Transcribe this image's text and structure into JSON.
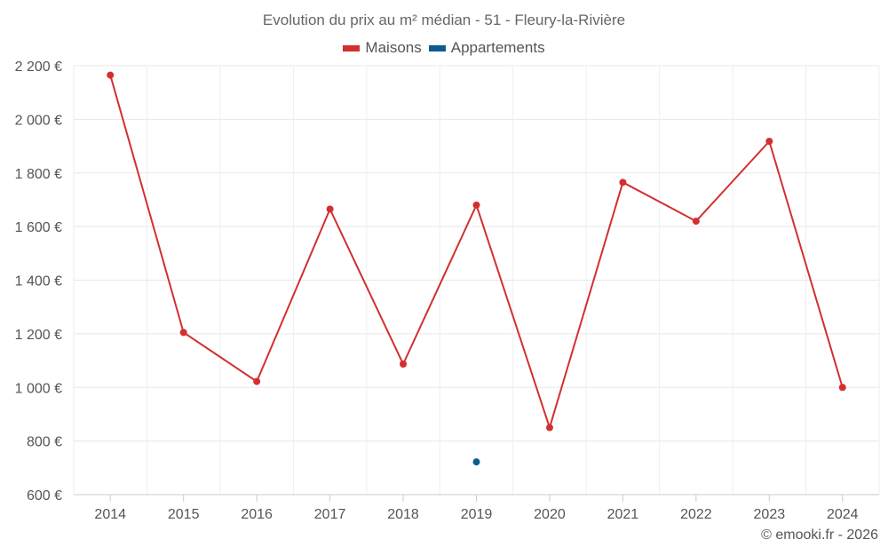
{
  "title": "Evolution du prix au m² médian - 51 - Fleury-la-Rivière",
  "credit": "© emooki.fr - 2026",
  "chart_data": {
    "type": "line",
    "title": "Evolution du prix au m² médian - 51 - Fleury-la-Rivière",
    "xlabel": "",
    "ylabel": "",
    "categories": [
      "2014",
      "2015",
      "2016",
      "2017",
      "2018",
      "2019",
      "2020",
      "2021",
      "2022",
      "2023",
      "2024"
    ],
    "ylim": [
      600,
      2200
    ],
    "yticks": [
      600,
      800,
      1000,
      1200,
      1400,
      1600,
      1800,
      2000,
      2200
    ],
    "ytick_labels": [
      "600 €",
      "800 €",
      "1 000 €",
      "1 200 €",
      "1 400 €",
      "1 600 €",
      "1 800 €",
      "2 000 €",
      "2 200 €"
    ],
    "grid": true,
    "legend_position": "top-center",
    "series": [
      {
        "name": "Maisons",
        "color": "#d32f2f",
        "values": [
          2165,
          1205,
          1022,
          1665,
          1087,
          1680,
          850,
          1765,
          1620,
          1918,
          1000
        ]
      },
      {
        "name": "Appartements",
        "color": "#0d5c91",
        "values": [
          null,
          null,
          null,
          null,
          null,
          722,
          null,
          null,
          null,
          null,
          null
        ]
      }
    ]
  }
}
